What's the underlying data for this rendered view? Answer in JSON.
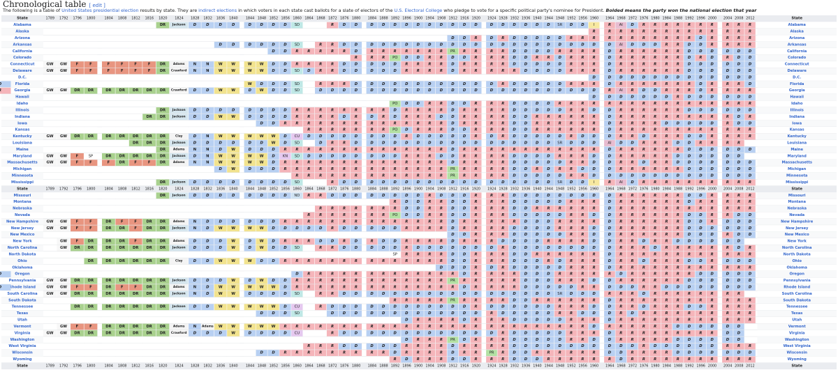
{
  "section": {
    "title": "Chronological table",
    "edit": "edit",
    "intro": {
      "t1": "The following is a table of ",
      "link1": "United States presidential election",
      "t2": " results by state. They are ",
      "link2": "indirect elections",
      "t3": " in which voters in each state cast ballots for a slate of electors of the ",
      "link3": "U.S. Electoral College",
      "t4": " who pledge to vote for a specific political party's nominee for President. ",
      "bold": "Bolded means the party won the national election that year"
    }
  },
  "table": {
    "state_header": "State",
    "years": [
      "1789",
      "1792",
      "1796",
      "1800",
      "1804",
      "1808",
      "1812",
      "1816",
      "1820",
      "1824",
      "1828",
      "1832",
      "1836",
      "1840",
      "1844",
      "1848",
      "1852",
      "1856",
      "1860",
      "1864",
      "1868",
      "1872",
      "1876",
      "1880",
      "1884",
      "1888",
      "1892",
      "1896",
      "1900",
      "1904",
      "1908",
      "1912",
      "1916",
      "1920",
      "1924",
      "1928",
      "1932",
      "1936",
      "1940",
      "1944",
      "1948",
      "1952",
      "1956",
      "1960",
      "1964",
      "1968",
      "1972",
      "1976",
      "1980",
      "1984",
      "1988",
      "1992",
      "1996",
      "2000",
      "2004",
      "2008",
      "2012"
    ],
    "colors": {
      "D": "#b8d0f2",
      "R": "#f5b5ba",
      "W": "#f2e38e",
      "F": "#e89580",
      "DR": "#a9d18e",
      "GW": "#f7f7f7",
      "N": "#b8d0f2",
      "SD": "#bfe8e6",
      "CU": "#e5c8ef",
      "ND": "#cfe2f2",
      "KN": "#e5c8ef",
      "PO": "#b3e0a3",
      "PR": "#b3e0a3",
      "SR": "#b8d0f2",
      "AI": "#e8bcd0",
      "C": "#f4f4f4",
      "J": "#d6e6ee",
      "A": "#f4f4f4",
      "O": "#f6f6f6",
      "I": "#f7e8a0",
      "E": "#ffffff"
    },
    "states": [
      {
        "name": "Alabama",
        "cells": "E E E E E E E E DR J D D D D D D D D SD E E R D D D D D D D D D D D D D D D D D D SR D D I R AI D R R R R R R R R R R"
      },
      {
        "name": "Alaska",
        "cells": "E E E E E E E E E E E E E E E E E E E E E E E E E E E E E E E E E E E E E E E E E E E R R R R R R R R R R R R R R"
      },
      {
        "name": "Arizona",
        "cells": "E E E E E E E E E E E E E E E E E E E E E E E E E E E E E E E D D R D R D D D D D R R R R R R R R R R R D R R R R"
      },
      {
        "name": "Arkansas",
        "cells": "E E E E E E E E E E E E D D D D D D SD E R R D D D D D D D D D D D D D D D D D D D D D D D AI D D D R R D D R R R R"
      },
      {
        "name": "California",
        "cells": "E E E E E E E E E E E E E E E E D D R R R R R D R R R R R R R PR R R R R D D D D R R R R D R R R R R R D D D D D D"
      },
      {
        "name": "Colorado",
        "cells": "E E E E E E E E E E E E E E E E E E E E E E E R R R PO D D R R D D R R R D D R R D R R R D R R R R R R D R D R D D"
      },
      {
        "name": "Connecticut",
        "cells": "GW GW F F F F F F DR A N N W W W W D D R R R R D D D D D R R R R D R R R R D D D D D R R R D R R R R R R D D D D D D"
      },
      {
        "name": "Delaware",
        "cells": "GW GW F F F F F F DR O N N W W W W D D SD D R R D D D D D R R R R D R R R R R D D D D R R R D R R R R R R D D D D D D"
      },
      {
        "name": "D.C.",
        "cells": "E E E E E E E E E E E E E E E E E E E E E E E E E E E E E E E E E E E E E E E E E E E D D D D D D D D D D D D D D"
      },
      {
        "name": "Florida",
        "cells": "E E E E E E E E E E E E E E W D D D SD E R R R D D D D D D D D D D D D R D D D D D R R R D R R R R R R R D R R R D D"
      },
      {
        "name": "Georgia",
        "cells": "GW GW DR DR DR DR DR DR DR O D D W W D W D D SD E D D D D D D D D D D D D D D D D D D D D D D D D R AI R D D R R R D R R R R R"
      },
      {
        "name": "Hawaii",
        "cells": "E E E E E E E E E E E E E E E E E E E E E E E E E E E E E E E E E E E E E E E E E E E D D D D D D D R D D D D D D"
      },
      {
        "name": "Idaho",
        "cells": "E E E E E E E E E E E E E E E E E E E E E E E E E E PO D D R R D D R R R D D D D R R R R R R R R R R R R R R R R R"
      },
      {
        "name": "Illinois",
        "cells": "E E E E E E E E DR J D D D D D D D D R R R R R R R R D R R R R D R R R R D D D D D R R D D R R R R R R D D D D D D"
      },
      {
        "name": "Indiana",
        "cells": "E E E E E E E DR DR J D D W W D D D D R R R R D R D R D R R R D D R R R R D D R R R R R R D R R R R R R R R R R D R"
      },
      {
        "name": "Iowa",
        "cells": "E E E E E E E E E E E E E E E D D R R R R R R R R R R R R R R D R R R R D D R R R R R R D R R R R D D D D D R D D"
      },
      {
        "name": "Kansas",
        "cells": "E E E E E E E E E E E E E E E E E E E R R R R R R R PO D R R R D D R R R D D R R R R R R D R R R R R R R R R R R R"
      },
      {
        "name": "Kentucky",
        "cells": "GW GW DR DR DR DR DR DR DR C D N W W W W W D CU D D D D D D D D R D D D D D R D R D D D D D R D D D R R D R R R D D R R R R"
      },
      {
        "name": "Louisiana",
        "cells": "E E E E E E DR DR DR J D D D D D D W D SD E D R R D D D D D D D D D D D D D D D D D SR D D D AI D D R R R D D R R R R"
      },
      {
        "name": "Maine",
        "cells": "E E E E E E E E DR A N N D W D D D R R R R R R R R R R R R R R D R R R R R R R R R R R R D R R R R R R D D D D D D"
      },
      {
        "name": "Maryland",
        "cells": "GW GW F SP DR DR DR DR DR J D N W W W W D KN SD D D D D D D D D R R R D D R R R R D D D D R R R D D R R R R R D D D D D D"
      },
      {
        "name": "Massachusetts",
        "cells": "GW GW F F F DR F F DR A N N W W W W D R R R R R R R R R R R R R R D R R R R D D D D D R R D D R R D R R D D D D D D D"
      },
      {
        "name": "Michigan",
        "cells": "E E E E E E E E E E E E D W D D D R R R R R R R R R R R R R R PR R R R R D D R D R R D D D R R R R R R D D D D D D"
      },
      {
        "name": "Minnesota",
        "cells": "E E E E E E E E E E E E E E E E E E R R R R R R R R R R R R R PR R R R R D D D D D R R D D D D D D D D D D D D D D"
      },
      {
        "name": "Mississippi",
        "cells": "E E E E E E E E DR J D D D D D D D D SD E E R D D D D D D D D D D D D D D D D D D SR D D I R AI D R R R R R R R R R R"
      },
      {
        "name": "Missouri",
        "cells": "E E E E E E E E DR J D D D D D D D D ND R R D D D D D D D D R D D D R R R D D D D D D D D D R R R R R R D D R R R R"
      },
      {
        "name": "Montana",
        "cells": "E E E E E E E E E E E E E E E E E E E E E E E E E E R D D R R D D R R R D D D D D R R R D R R R R R R D R R R R R"
      },
      {
        "name": "Nebraska",
        "cells": "E E E E E E E E E E E E E E E E E E E E R R R R R R R D D R R D D R R R D D R R R R R R D R R R R R R R R R R R R"
      },
      {
        "name": "Nevada",
        "cells": "E E E E E E E E E E E E E E E E E E E R R R R R R R PO D D R R D D R R R D D D D D R R D D R R R R R R D D R R D D"
      },
      {
        "name": "New Hampshire",
        "cells": "GW GW F F DR F F DR DR A N D D D D D D R R R R R R R R R R R R R R D R R R R R D D D R R R R D R R R R R R D D R D D D"
      },
      {
        "name": "New Jersey",
        "cells": "GW GW F F DR DR F DR DR J N D W W W W D D D D D R D D D D D R R R R D R R R R D D D D R R R D D R R R R R R D D D D D D"
      },
      {
        "name": "New Mexico",
        "cells": "E E E E E E E E E E E E E E E E E E E E E E E E E E E E E E E D D R R R D D D D D R R D D R R R R R R D D D R D D"
      },
      {
        "name": "New York",
        "cells": "E GW F DR DR DR F DR DR A D D D W D W D R R R D D R D R D D R R R R D R R R D D D D R R R R D D R R D R R D D D D D D"
      },
      {
        "name": "North Carolina",
        "cells": "E GW DR DR DR DR DR DR DR J D D D W D W D D SD E R R D D D D D R D D D D D D D R D D D D D D D D D R R R D R R R R R R D R"
      },
      {
        "name": "North Dakota",
        "cells": "E E E E E E E E E E E E E E E E E E E E E E E E E E SP R R R R D D R R R D D R R R R R R D R R R R R R R R R R R R"
      },
      {
        "name": "Ohio",
        "cells": "E E E DR DR DR DR DR DR C D D W W W D D R R R R R R R R R R R R R R D D R R R D D D R D R R R D R R D R R R D D R D D D"
      },
      {
        "name": "Oklahoma",
        "cells": "E E E E E E E E E E E E E E E E E E E E E E E E E E E E E E D D D R D R D D D D D R R R D R R R R R R R R R R R R"
      },
      {
        "name": "Oregon",
        "cells": "E E E E E E E E E E E E E E E E E E D R R R R R R R R R R R R R D R R R R D D D R R R R R D R R R R R R D D D D D D"
      },
      {
        "name": "Pennsylvania",
        "cells": "GW GW DR DR DR DR DR DR DR J D D D W D W D D R R R R R R R R R R R R R PR R R R R R D D D R R R D D R R R R R R D D D D D D"
      },
      {
        "name": "Rhode Island",
        "cells": "GW GW F F DR F F DR DR A N D W W W W W D R R R R R R R R R R R R R R D R R R R D D D D D R R D D D R R D D D D D D D D D"
      },
      {
        "name": "South Carolina",
        "cells": "GW GW DR DR DR DR DR DR DR J N D W W D D D D SD E R R D D D D D D D D D D D D D D D D D D SR D D D R R R D R R R R R R R R"
      },
      {
        "name": "South Dakota",
        "cells": "E E E E E E E E E E E E E E E E E E E E E E E E E E R R R R R PR R R R R D D R R R R R R D R R R R R R R R R R R R"
      },
      {
        "name": "Tennessee",
        "cells": "E E DR DR DR DR DR DR DR J D D W W W W W D CU E R D D D D D D D D D D D D R D D D D D D R R R D D R R D R R R D D R R R R"
      },
      {
        "name": "Texas",
        "cells": "E E E E E E E E E E E E E E E D D D SD E E D D D D D D D D D D D D D R D D D D D R R D D D R D R R R R R R R R R R"
      },
      {
        "name": "Utah",
        "cells": "E E E E E E E E E E E E E E E E E E E E E E E E E E E D R R R R D R R R D D D D D R R R D R R R R R R R R R R R R"
      },
      {
        "name": "Vermont",
        "cells": "E GW F F DR DR DR DR DR A N A W W W W W R R R R R R R R R R R R R R R R R R R R R R R R R R D R R R R R R D D D D D D"
      },
      {
        "name": "Virginia",
        "cells": "GW GW DR DR DR DR DR DR DR O D D D W D D D D CU E E R D D D D D D D D D D D D D R D D D D D R R R D R R R R R R R R R D D"
      },
      {
        "name": "Washington",
        "cells": "E E E E E E E E E E E E E E E E E E E E E E E E E E E D R R R PR D R R R D D D D D R R D D R R R R R D D D D D D"
      },
      {
        "name": "West Virginia",
        "cells": "E E E E E E E E E E E E E E E E E E E R R R D D D D D R R R R D R R R R D D D D D D D D D D D R D D D D D D R R R"
      },
      {
        "name": "Wisconsin",
        "cells": "E E E E E E E E E E E E E E E D D R R R R R R R R R D R R R R D R R PR R D D R R R R R R D D R R R R D D D D D D D"
      },
      {
        "name": "Wyoming",
        "cells": "E E E E E E E E E E E E E E E E E E E E E E E E E E R D R R R D D R R R D D D R R R R R R D R R R R R R R R R R R"
      }
    ],
    "repeat_after_index": 24
  }
}
